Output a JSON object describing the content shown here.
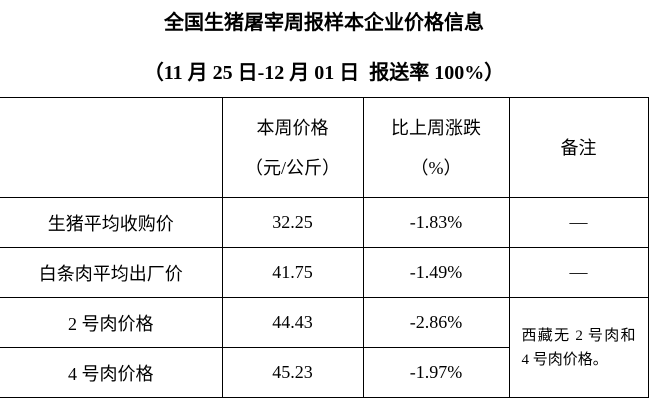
{
  "header": {
    "title": "全国生猪屠宰周报样本企业价格信息",
    "subtitle": "（11 月 25 日-12 月 01 日  报送率 100%）"
  },
  "table": {
    "columns": [
      [
        "本周价格",
        "（元/公斤）"
      ],
      [
        "比上周涨跌",
        "（%）"
      ],
      [
        "备注"
      ]
    ],
    "rows": [
      [
        "生猪平均收购价",
        "32.25",
        "-1.83%",
        "—"
      ],
      [
        "白条肉平均出厂价",
        "41.75",
        "-1.49%",
        "—"
      ],
      [
        "2 号肉价格",
        "44.43",
        "-2.86%"
      ],
      [
        "4 号肉价格",
        "45.23",
        "-1.97%"
      ]
    ],
    "note": "西藏无 2 号肉和 4 号肉价格。"
  }
}
